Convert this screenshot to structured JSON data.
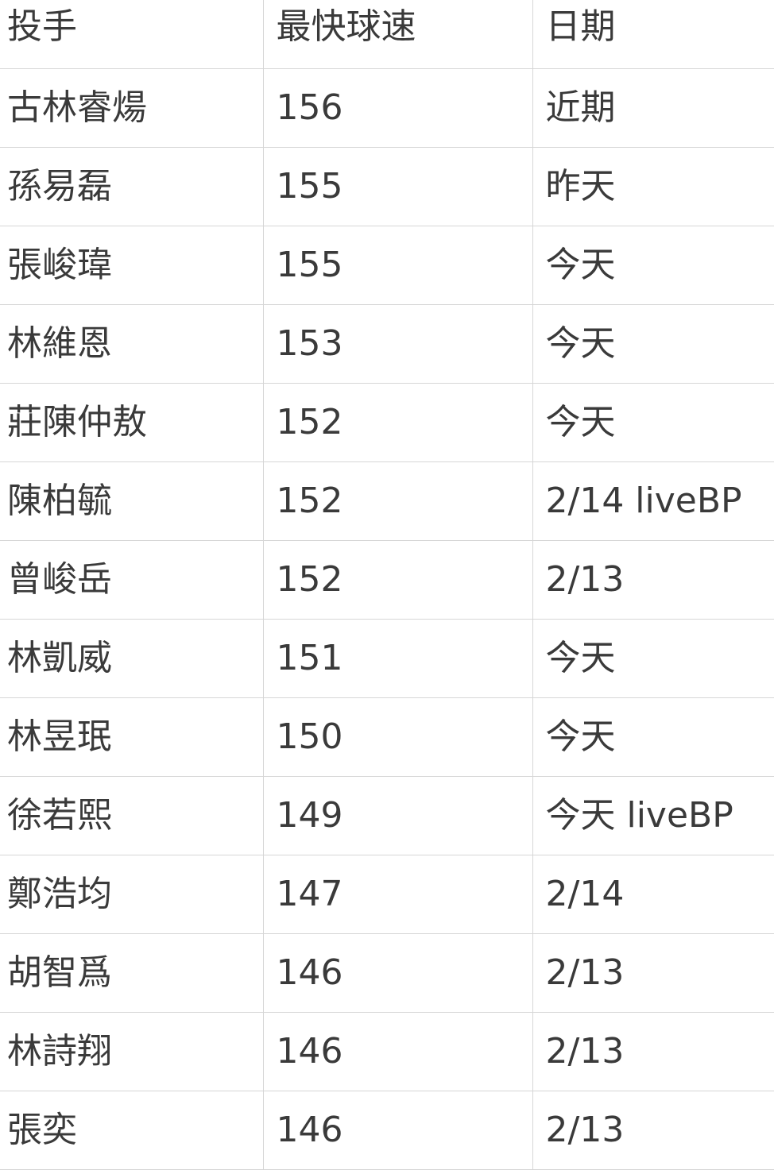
{
  "table": {
    "headers": [
      "投手",
      "最快球速",
      "日期"
    ],
    "rows": [
      [
        "古林睿煬",
        "156",
        "近期"
      ],
      [
        "孫易磊",
        "155",
        "昨天"
      ],
      [
        "張峻瑋",
        "155",
        "今天"
      ],
      [
        "林維恩",
        "153",
        "今天"
      ],
      [
        "莊陳仲敖",
        "152",
        "今天"
      ],
      [
        "陳柏毓",
        "152",
        "2/14 liveBP"
      ],
      [
        "曾峻岳",
        "152",
        "2/13"
      ],
      [
        "林凱威",
        "151",
        "今天"
      ],
      [
        "林昱珉",
        "150",
        "今天"
      ],
      [
        "徐若熙",
        "149",
        "今天 liveBP"
      ],
      [
        "鄭浩均",
        "147",
        "2/14"
      ],
      [
        "胡智爲",
        "146",
        "2/13"
      ],
      [
        "林詩翔",
        "146",
        "2/13"
      ],
      [
        "張奕",
        "146",
        "2/13"
      ]
    ]
  }
}
